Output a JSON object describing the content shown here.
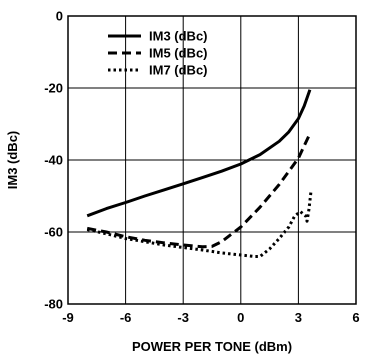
{
  "chart_data": {
    "type": "line",
    "title": "",
    "xlabel": "POWER PER TONE (dBm)",
    "ylabel": "IM3 (dBc)",
    "xlim": [
      -9,
      6
    ],
    "ylim": [
      -80,
      0
    ],
    "x_ticks": [
      -9,
      -6,
      -3,
      0,
      3,
      6
    ],
    "x_tick_labels": [
      "-9",
      "-6",
      "-3",
      "0",
      "3",
      "6"
    ],
    "y_ticks": [
      -80,
      -60,
      -40,
      -20,
      0
    ],
    "y_tick_labels": [
      "-80",
      "-60",
      "-40",
      "-20",
      "0"
    ],
    "grid": true,
    "legend_position": "top-left",
    "series": [
      {
        "name": "IM3 (dBc)",
        "line_style": "solid",
        "color": "#000000",
        "x": [
          -8,
          -7,
          -6,
          -5,
          -4,
          -3,
          -2,
          -1,
          0,
          1,
          2,
          2.5,
          3,
          3.3,
          3.6
        ],
        "y": [
          -55.5,
          -53.5,
          -51.8,
          -50,
          -48.3,
          -46.6,
          -44.9,
          -43.1,
          -41.1,
          -38.5,
          -34.8,
          -32.2,
          -28.5,
          -25,
          -20.5
        ]
      },
      {
        "name": "IM5 (dBc)",
        "line_style": "dashed",
        "color": "#000000",
        "x": [
          -8,
          -7,
          -6,
          -5,
          -4,
          -3,
          -2,
          -1.5,
          -1,
          0,
          1,
          2,
          3,
          3.6
        ],
        "y": [
          -59,
          -60,
          -61.3,
          -62.3,
          -63,
          -63.6,
          -64.1,
          -64,
          -62.7,
          -58.6,
          -53.1,
          -46.8,
          -39.5,
          -32.7
        ]
      },
      {
        "name": "IM7 (dBc)",
        "line_style": "dotted",
        "color": "#000000",
        "x": [
          -8,
          -7,
          -6,
          -5,
          -4,
          -3,
          -2,
          -1,
          0,
          0.7,
          1,
          1.5,
          2,
          2.5,
          2.8,
          3.1,
          3.4,
          3.45,
          3.55,
          3.65
        ],
        "y": [
          -59.3,
          -60.5,
          -61.8,
          -62.7,
          -63.6,
          -64.3,
          -65,
          -65.8,
          -66.4,
          -66.8,
          -66.8,
          -64.7,
          -61.8,
          -58.6,
          -55.6,
          -54.3,
          -55.7,
          -57,
          -53.6,
          -48.9
        ]
      }
    ]
  }
}
